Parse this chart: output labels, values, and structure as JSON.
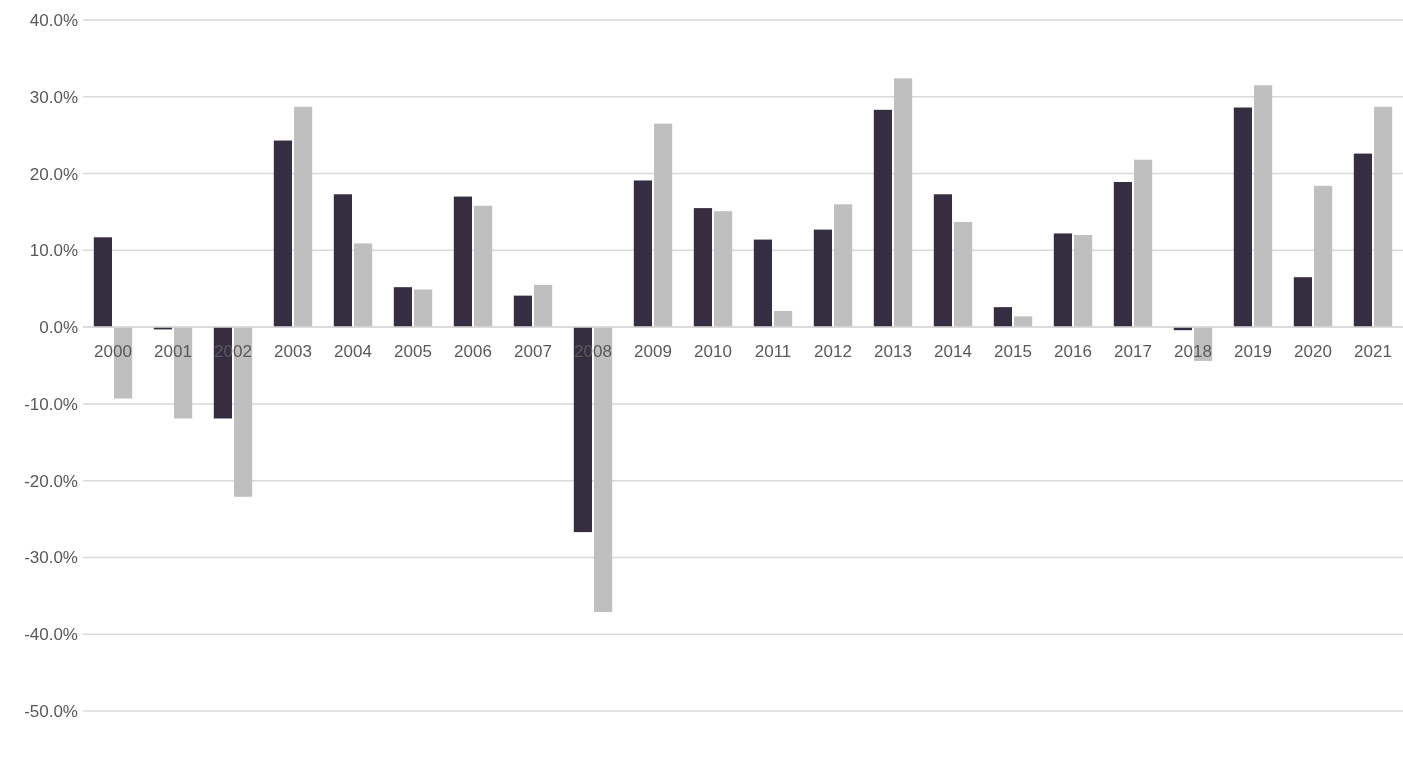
{
  "chart_data": {
    "type": "bar",
    "categories": [
      "2000",
      "2001",
      "2002",
      "2003",
      "2004",
      "2005",
      "2006",
      "2007",
      "2008",
      "2009",
      "2010",
      "2011",
      "2012",
      "2013",
      "2014",
      "2015",
      "2016",
      "2017",
      "2018",
      "2019",
      "2020",
      "2021"
    ],
    "series": [
      {
        "color": "#352d40",
        "values": [
          11.7,
          -0.3,
          -11.9,
          24.3,
          17.3,
          5.2,
          17.0,
          4.1,
          -26.7,
          19.1,
          15.5,
          11.4,
          12.7,
          28.3,
          17.3,
          2.6,
          12.2,
          18.9,
          -0.4,
          28.6,
          6.5,
          22.6
        ]
      },
      {
        "color": "#bfbfbf",
        "values": [
          -9.3,
          -11.9,
          -22.1,
          28.7,
          10.9,
          4.9,
          15.8,
          5.5,
          -37.1,
          26.5,
          15.1,
          2.1,
          16.0,
          32.4,
          13.7,
          1.4,
          12.0,
          21.8,
          -4.4,
          31.5,
          18.4,
          28.7
        ]
      }
    ],
    "ylim": [
      -50,
      40
    ],
    "yticks": [
      {
        "value": -50,
        "label": "-50.0%"
      },
      {
        "value": -40,
        "label": "-40.0%"
      },
      {
        "value": -30,
        "label": "-30.0%"
      },
      {
        "value": -20,
        "label": "-20.0%"
      },
      {
        "value": -10,
        "label": "-10.0%"
      },
      {
        "value": 0,
        "label": "0.0%"
      },
      {
        "value": 10,
        "label": "10.0%"
      },
      {
        "value": 20,
        "label": "20.0%"
      },
      {
        "value": 30,
        "label": "30.0%"
      },
      {
        "value": 40,
        "label": "40.0%"
      }
    ],
    "grid": "y"
  }
}
